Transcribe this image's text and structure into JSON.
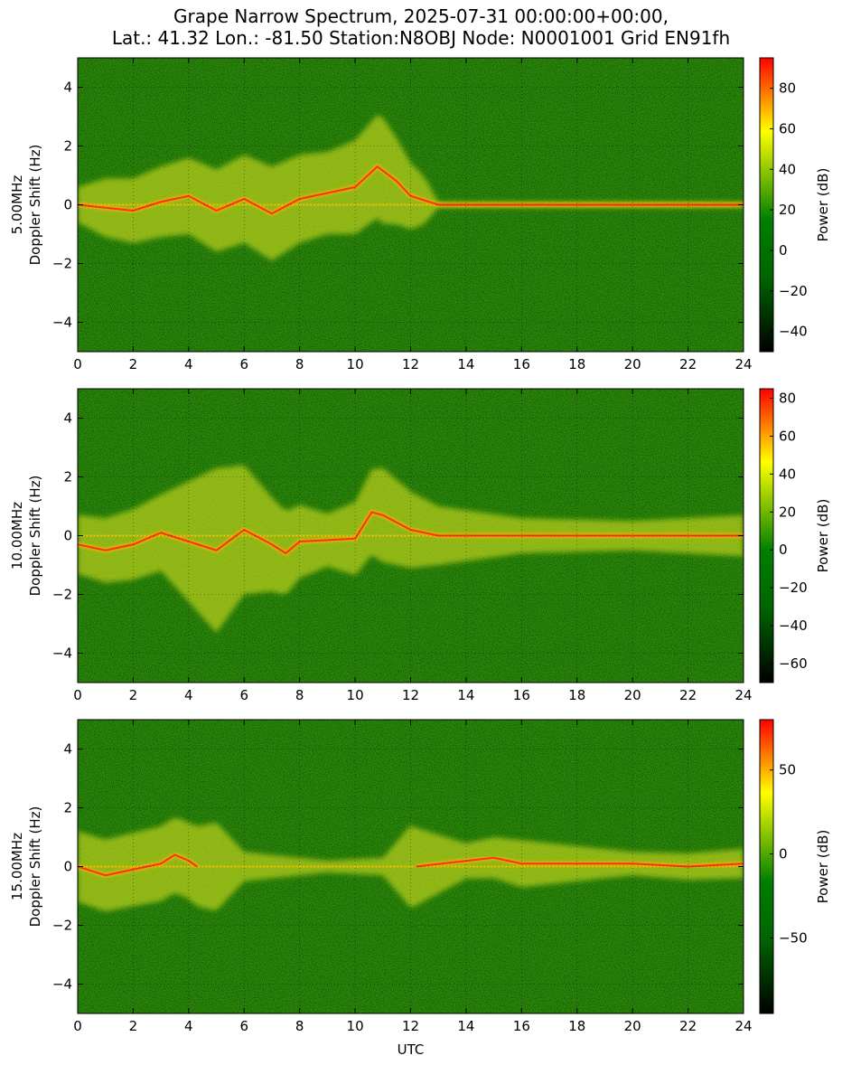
{
  "title_line1": "Grape Narrow Spectrum, 2025-07-31 00:00:00+00:00,",
  "title_line2": "Lat.: 41.32 Lon.: -81.50 Station:N8OBJ Node: N0001001 Grid EN91fh",
  "colors": {
    "colormap": [
      "#000000",
      "#006400",
      "#008000",
      "#ffff00",
      "#ff0000"
    ],
    "noise": "#2a8a0a",
    "signal": "#e8e820",
    "core": "#ff3010"
  },
  "chart_data": [
    {
      "type": "heatmap",
      "name": "5.00MHz",
      "xlabel": "",
      "ylabel": "Doppler Shift (Hz)",
      "xlim": [
        0,
        24
      ],
      "ylim": [
        -5,
        5
      ],
      "xticks": [
        0,
        2,
        4,
        6,
        8,
        10,
        12,
        14,
        16,
        18,
        20,
        22,
        24
      ],
      "yticks": [
        -4,
        -2,
        0,
        2,
        4
      ],
      "colorbar": {
        "label": "Power (dB)",
        "range": [
          -50,
          95
        ],
        "ticks": [
          -40,
          -20,
          0,
          20,
          40,
          60,
          80
        ]
      },
      "grid": true,
      "trace": [
        [
          0.0,
          0.0
        ],
        [
          1.0,
          -0.1
        ],
        [
          2.0,
          -0.2
        ],
        [
          3.0,
          0.1
        ],
        [
          4.0,
          0.3
        ],
        [
          5.0,
          -0.2
        ],
        [
          6.0,
          0.2
        ],
        [
          7.0,
          -0.3
        ],
        [
          8.0,
          0.2
        ],
        [
          9.0,
          0.4
        ],
        [
          10.0,
          0.6
        ],
        [
          10.8,
          1.3
        ],
        [
          11.5,
          0.8
        ],
        [
          12.0,
          0.3
        ],
        [
          13.0,
          0.0
        ],
        [
          24.0,
          0.0
        ]
      ],
      "signal_spread": [
        [
          0,
          0.6
        ],
        [
          1,
          1.0
        ],
        [
          4,
          1.3
        ],
        [
          7,
          1.6
        ],
        [
          9,
          1.4
        ],
        [
          11,
          1.8
        ],
        [
          12.5,
          0.8
        ],
        [
          13,
          0.1
        ],
        [
          24,
          0.1
        ]
      ]
    },
    {
      "type": "heatmap",
      "name": "10.00MHz",
      "xlabel": "",
      "ylabel": "Doppler Shift (Hz)",
      "xlim": [
        0,
        24
      ],
      "ylim": [
        -5,
        5
      ],
      "xticks": [
        0,
        2,
        4,
        6,
        8,
        10,
        12,
        14,
        16,
        18,
        20,
        22,
        24
      ],
      "yticks": [
        -4,
        -2,
        0,
        2,
        4
      ],
      "colorbar": {
        "label": "Power (dB)",
        "range": [
          -70,
          85
        ],
        "ticks": [
          -60,
          -40,
          -20,
          0,
          20,
          40,
          60,
          80
        ]
      },
      "grid": true,
      "trace": [
        [
          0.0,
          -0.3
        ],
        [
          1.0,
          -0.5
        ],
        [
          2.0,
          -0.3
        ],
        [
          3.0,
          0.1
        ],
        [
          4.0,
          -0.2
        ],
        [
          5.0,
          -0.5
        ],
        [
          6.0,
          0.2
        ],
        [
          7.0,
          -0.3
        ],
        [
          7.5,
          -0.6
        ],
        [
          8.0,
          -0.2
        ],
        [
          10.0,
          -0.1
        ],
        [
          10.6,
          0.8
        ],
        [
          11.0,
          0.7
        ],
        [
          12.0,
          0.2
        ],
        [
          13.0,
          0.0
        ],
        [
          24.0,
          0.0
        ]
      ],
      "signal_spread": [
        [
          0,
          1.0
        ],
        [
          3,
          1.3
        ],
        [
          5,
          2.8
        ],
        [
          7,
          1.6
        ],
        [
          9,
          0.9
        ],
        [
          11,
          1.6
        ],
        [
          13,
          1.0
        ],
        [
          16,
          0.6
        ],
        [
          20,
          0.5
        ],
        [
          24,
          0.7
        ]
      ]
    },
    {
      "type": "heatmap",
      "name": "15.00MHz",
      "xlabel": "UTC",
      "ylabel": "Doppler Shift (Hz)",
      "xlim": [
        0,
        24
      ],
      "ylim": [
        -5,
        5
      ],
      "xticks": [
        0,
        2,
        4,
        6,
        8,
        10,
        12,
        14,
        16,
        18,
        20,
        22,
        24
      ],
      "yticks": [
        -4,
        -2,
        0,
        2,
        4
      ],
      "colorbar": {
        "label": "Power (dB)",
        "range": [
          -95,
          80
        ],
        "ticks": [
          -50,
          0,
          50
        ]
      },
      "grid": true,
      "trace": [
        [
          0.0,
          0.0
        ],
        [
          1.0,
          -0.3
        ],
        [
          2.0,
          -0.1
        ],
        [
          3.0,
          0.1
        ],
        [
          3.5,
          0.4
        ],
        [
          4.0,
          0.2
        ],
        [
          4.3,
          0.0
        ]
      ],
      "trace2": [
        [
          12.2,
          0.0
        ],
        [
          15.0,
          0.3
        ],
        [
          16.0,
          0.1
        ],
        [
          20.0,
          0.1
        ],
        [
          22.0,
          0.0
        ],
        [
          24.0,
          0.1
        ]
      ],
      "signal_spread": [
        [
          0,
          1.2
        ],
        [
          4,
          1.3
        ],
        [
          5,
          1.5
        ],
        [
          6,
          0.5
        ],
        [
          9,
          0.2
        ],
        [
          11,
          0.3
        ],
        [
          12,
          1.4
        ],
        [
          14,
          0.6
        ],
        [
          16,
          0.8
        ],
        [
          20,
          0.4
        ],
        [
          24,
          0.5
        ]
      ]
    }
  ]
}
